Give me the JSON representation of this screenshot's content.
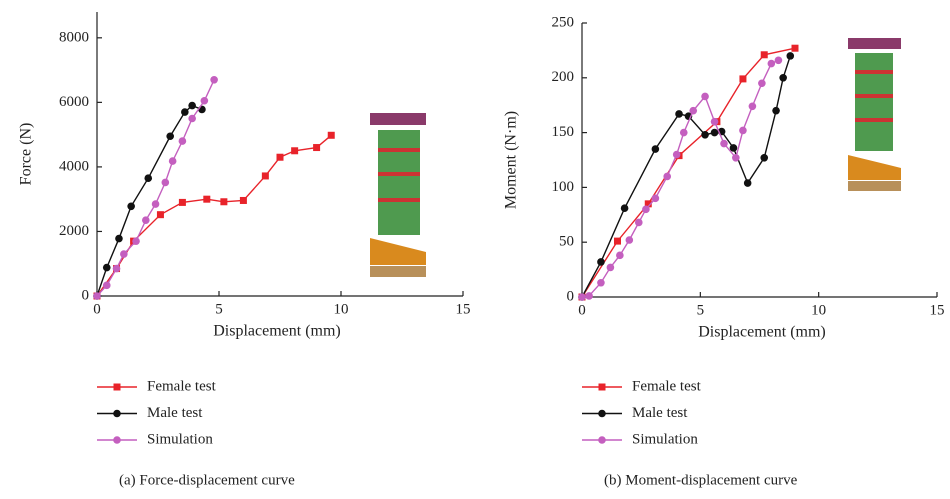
{
  "chart_data": [
    {
      "type": "line",
      "caption": "(a) Force-displacement curve",
      "xlabel": "Displacement (mm)",
      "ylabel": "Force (N)",
      "xlim": [
        0,
        15
      ],
      "ylim": [
        0,
        8800
      ],
      "xticks": [
        0,
        5,
        10,
        15
      ],
      "yticks": [
        0,
        2000,
        4000,
        6000,
        8000
      ],
      "series": [
        {
          "name": "Female test",
          "color": "#e8232a",
          "marker": "square",
          "x": [
            0,
            0.8,
            1.5,
            2.6,
            3.5,
            4.5,
            5.2,
            6,
            6.9,
            7.5,
            8.1,
            9,
            9.6
          ],
          "values": [
            0,
            850,
            1700,
            2520,
            2900,
            3000,
            2920,
            2960,
            3720,
            4300,
            4500,
            4600,
            4980
          ]
        },
        {
          "name": "Male test",
          "color": "#111111",
          "marker": "circle",
          "x": [
            0,
            0.4,
            0.9,
            1.4,
            2.1,
            3,
            3.6,
            3.9,
            4.3
          ],
          "values": [
            0,
            880,
            1780,
            2780,
            3650,
            4950,
            5700,
            5900,
            5780
          ]
        },
        {
          "name": "Simulation",
          "color": "#c45fbf",
          "marker": "circle",
          "x": [
            0,
            0.4,
            0.8,
            1.1,
            1.6,
            2,
            2.4,
            2.8,
            3.1,
            3.5,
            3.9,
            4.4,
            4.8
          ],
          "values": [
            0,
            330,
            850,
            1300,
            1700,
            2350,
            2850,
            3520,
            4180,
            4800,
            5500,
            6050,
            6700
          ]
        }
      ]
    },
    {
      "type": "line",
      "caption": "(b) Moment-displacement curve",
      "xlabel": "Displacement (mm)",
      "ylabel": "Moment (N·m)",
      "xlim": [
        0,
        15
      ],
      "ylim": [
        0,
        250
      ],
      "xticks": [
        0,
        5,
        10,
        15
      ],
      "yticks": [
        0,
        50,
        100,
        150,
        200,
        250
      ],
      "series": [
        {
          "name": "Female test",
          "color": "#e8232a",
          "marker": "square",
          "x": [
            0,
            1.5,
            2.8,
            4.1,
            5.7,
            6.8,
            7.7,
            9
          ],
          "values": [
            0,
            51,
            85,
            129,
            160,
            199,
            221,
            227
          ]
        },
        {
          "name": "Male test",
          "color": "#111111",
          "marker": "circle",
          "x": [
            0,
            0.8,
            1.8,
            3.1,
            4.1,
            4.5,
            5.2,
            5.6,
            5.9,
            6.4,
            7,
            7.7,
            8.2,
            8.5,
            8.8
          ],
          "values": [
            0,
            32,
            81,
            135,
            167,
            165,
            148,
            150,
            151,
            136,
            104,
            127,
            170,
            200,
            220
          ]
        },
        {
          "name": "Simulation",
          "color": "#c45fbf",
          "marker": "circle",
          "x": [
            0,
            0.3,
            0.8,
            1.2,
            1.6,
            2,
            2.4,
            2.7,
            3.1,
            3.6,
            4,
            4.3,
            4.7,
            5.2,
            5.6,
            6,
            6.5,
            6.8,
            7.2,
            7.6,
            8,
            8.3
          ],
          "values": [
            0,
            1,
            13,
            27,
            38,
            52,
            68,
            80,
            90,
            110,
            130,
            150,
            170,
            183,
            160,
            140,
            127,
            152,
            174,
            195,
            213,
            216
          ]
        }
      ]
    }
  ]
}
